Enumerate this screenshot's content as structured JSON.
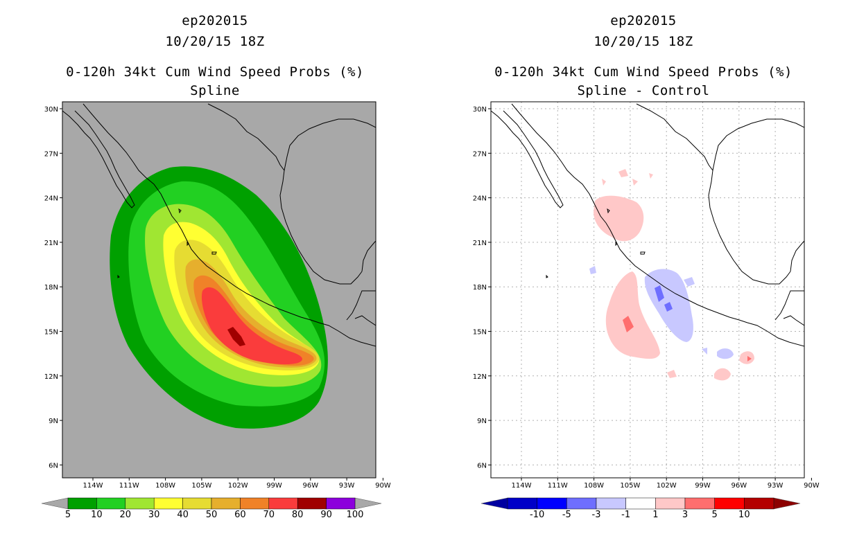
{
  "panels": [
    {
      "id": "left",
      "title_lines": [
        "ep202015",
        "10/20/15 18Z",
        "0-120h 34kt Cum Wind Speed Probs (%)",
        "Spline"
      ],
      "background": "#a8a8a8",
      "lat_labels": [
        "30N",
        "27N",
        "24N",
        "21N",
        "18N",
        "15N",
        "12N",
        "9N",
        "6N"
      ],
      "lon_labels": [
        "114W",
        "111W",
        "108W",
        "105W",
        "102W",
        "99W",
        "96W",
        "93W",
        "90W"
      ],
      "colorbar": {
        "colors": [
          "#00a000",
          "#22d022",
          "#a0e632",
          "#ffff32",
          "#e6dc32",
          "#e6af2d",
          "#f08228",
          "#fa3c3c",
          "#a00000",
          "#8c00dc"
        ],
        "labels": [
          "5",
          "10",
          "20",
          "30",
          "40",
          "50",
          "60",
          "70",
          "80",
          "90",
          "100"
        ]
      }
    },
    {
      "id": "right",
      "title_lines": [
        "ep202015",
        "10/20/15 18Z",
        "0-120h 34kt Cum Wind Speed Probs (%)",
        "Spline - Control"
      ],
      "background": "#ffffff",
      "lat_labels": [
        "30N",
        "27N",
        "24N",
        "21N",
        "18N",
        "15N",
        "12N",
        "9N",
        "6N"
      ],
      "lon_labels": [
        "114W",
        "111W",
        "108W",
        "105W",
        "102W",
        "99W",
        "96W",
        "93W",
        "90W"
      ],
      "colorbar": {
        "colors": [
          "#0000c8",
          "#0000ff",
          "#6e6eff",
          "#c8c8ff",
          "#ffffff",
          "#ffc8c8",
          "#ff6e6e",
          "#ff0000",
          "#b40000"
        ],
        "labels": [
          "-10",
          "-5",
          "-3",
          "-1",
          "1",
          "3",
          "5",
          "10"
        ]
      }
    }
  ]
}
